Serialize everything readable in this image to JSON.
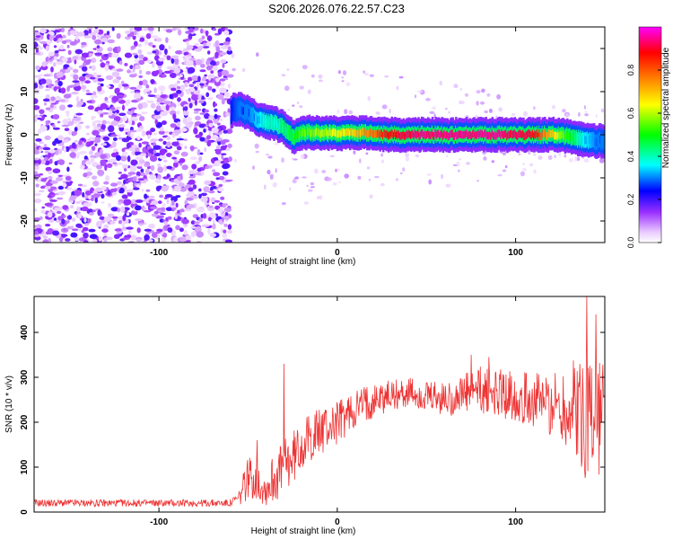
{
  "title": "S206.2026.076.22.57.C23",
  "chart_data": [
    {
      "type": "heatmap",
      "title": "S206.2026.076.22.57.C23",
      "xlabel": "Height of straight line (km)",
      "ylabel": "Frequency (Hz)",
      "xlim": [
        -170,
        150
      ],
      "ylim": [
        -25,
        25
      ],
      "x_ticks": [
        -100,
        0,
        100
      ],
      "y_ticks": [
        -20,
        -10,
        0,
        10,
        20
      ],
      "colorbar": {
        "label": "Normalized spectral amplitude",
        "range": [
          0,
          1
        ],
        "ticks": [
          0.0,
          0.2,
          0.4,
          0.6,
          0.8
        ],
        "colors": [
          "#ffffff",
          "#e8c8ff",
          "#9b30ff",
          "#0000ff",
          "#00ffff",
          "#00ff00",
          "#ffff00",
          "#ff8000",
          "#ff0000",
          "#ff00ff"
        ]
      },
      "noise_region_x": [
        -170,
        -60
      ],
      "ridge": [
        {
          "x": -60,
          "y": 5.5,
          "amp": 0.25
        },
        {
          "x": -55,
          "y": 6.0,
          "amp": 0.3
        },
        {
          "x": -50,
          "y": 5.0,
          "amp": 0.3
        },
        {
          "x": -45,
          "y": 3.5,
          "amp": 0.35
        },
        {
          "x": -40,
          "y": 3.0,
          "amp": 0.4
        },
        {
          "x": -35,
          "y": 2.5,
          "amp": 0.4
        },
        {
          "x": -30,
          "y": 1.5,
          "amp": 0.45
        },
        {
          "x": -25,
          "y": -0.5,
          "amp": 0.5
        },
        {
          "x": -20,
          "y": 0.5,
          "amp": 0.55
        },
        {
          "x": -10,
          "y": 0.5,
          "amp": 0.6
        },
        {
          "x": 0,
          "y": 0.3,
          "amp": 0.65
        },
        {
          "x": 10,
          "y": 0.5,
          "amp": 0.7
        },
        {
          "x": 20,
          "y": 0.3,
          "amp": 0.8
        },
        {
          "x": 30,
          "y": 0.0,
          "amp": 0.9
        },
        {
          "x": 50,
          "y": 0.0,
          "amp": 0.95
        },
        {
          "x": 70,
          "y": 0.0,
          "amp": 0.95
        },
        {
          "x": 90,
          "y": 0.0,
          "amp": 0.95
        },
        {
          "x": 110,
          "y": 0.0,
          "amp": 0.9
        },
        {
          "x": 125,
          "y": 0.0,
          "amp": 0.6
        },
        {
          "x": 135,
          "y": -1.0,
          "amp": 0.4
        },
        {
          "x": 145,
          "y": -1.5,
          "amp": 0.3
        },
        {
          "x": 150,
          "y": -1.5,
          "amp": 0.3
        }
      ]
    },
    {
      "type": "line",
      "xlabel": "Height of straight line (km)",
      "ylabel": "SNR (10 * v/v)",
      "xlim": [
        -170,
        150
      ],
      "ylim": [
        0,
        480
      ],
      "x_ticks": [
        -100,
        0,
        100
      ],
      "y_ticks": [
        0,
        100,
        200,
        300,
        400
      ],
      "color": "#ee3333",
      "envelope": {
        "x": [
          -170,
          -60,
          -55,
          -50,
          -45,
          -40,
          -35,
          -30,
          -25,
          -20,
          -10,
          0,
          10,
          20,
          30,
          40,
          50,
          60,
          70,
          80,
          90,
          100,
          110,
          120,
          130,
          140,
          150
        ],
        "mean": [
          20,
          20,
          30,
          80,
          70,
          50,
          80,
          100,
          120,
          150,
          180,
          200,
          230,
          250,
          260,
          265,
          255,
          250,
          260,
          270,
          265,
          260,
          250,
          240,
          230,
          220,
          210
        ],
        "spread": [
          8,
          8,
          20,
          50,
          45,
          40,
          60,
          60,
          60,
          55,
          55,
          50,
          45,
          40,
          35,
          35,
          35,
          40,
          45,
          55,
          55,
          60,
          60,
          70,
          100,
          160,
          140
        ]
      },
      "spikes": [
        {
          "x": -45,
          "y": 160
        },
        {
          "x": -30,
          "y": 330
        },
        {
          "x": 75,
          "y": 350
        },
        {
          "x": 85,
          "y": 345
        },
        {
          "x": 140,
          "y": 480
        },
        {
          "x": 145,
          "y": 440
        }
      ]
    }
  ]
}
